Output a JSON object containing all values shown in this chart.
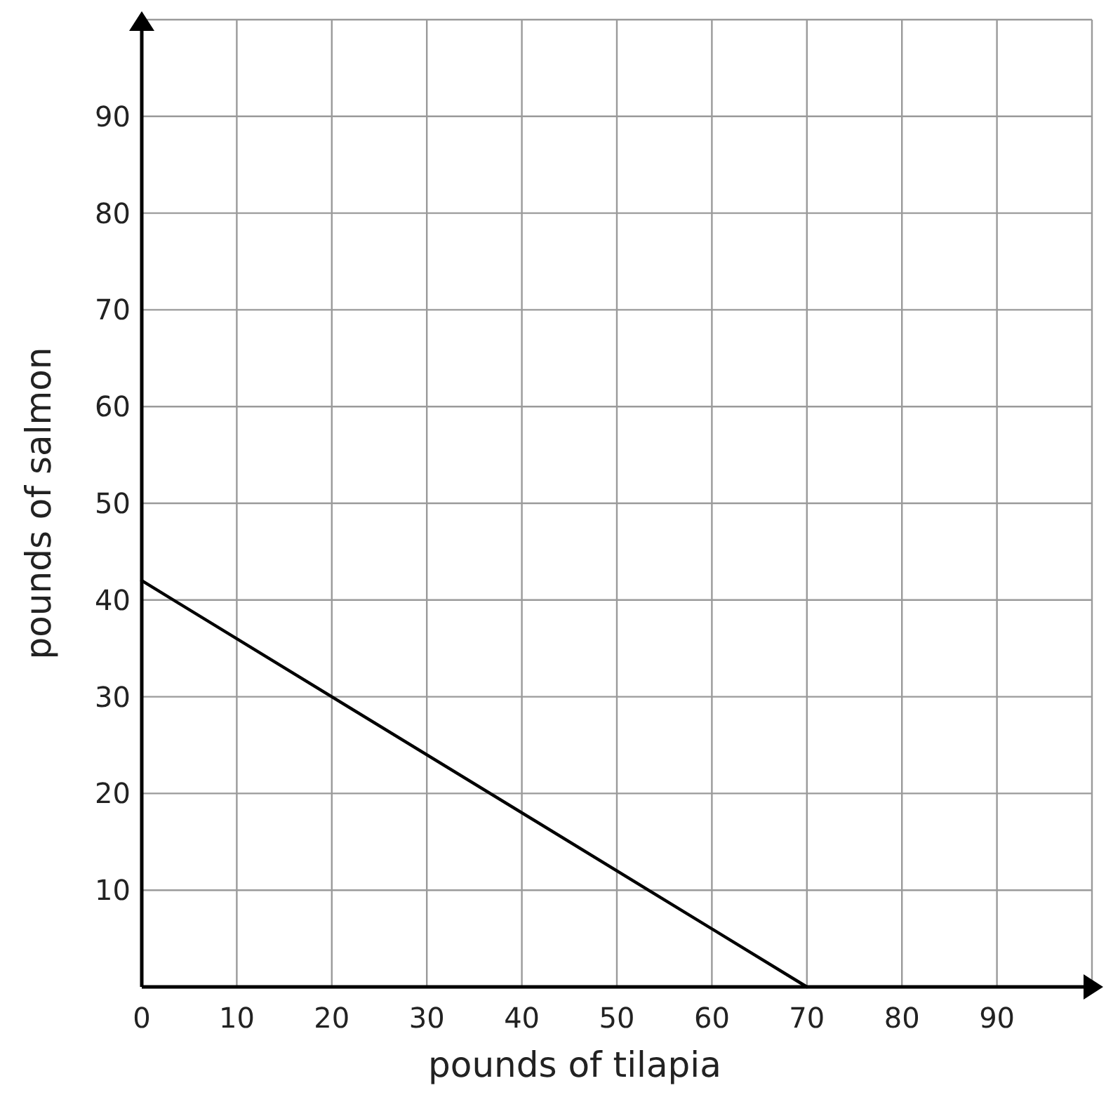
{
  "chart_data": {
    "type": "line",
    "xlabel": "pounds of tilapia",
    "ylabel": "pounds of salmon",
    "x": [
      0,
      70
    ],
    "series": [
      {
        "color": "#000000",
        "values": [
          42,
          0
        ]
      }
    ],
    "xlim": [
      0,
      100
    ],
    "ylim": [
      0,
      100
    ],
    "xticks": [
      {
        "value": 0,
        "label": "0"
      },
      10,
      20,
      30,
      40,
      50,
      60,
      70,
      80,
      90,
      {
        "value": 100,
        "label": null
      }
    ],
    "yticks": [
      10,
      20,
      30,
      40,
      50,
      60,
      70,
      80,
      90,
      {
        "value": 100,
        "label": null
      }
    ],
    "grid": true,
    "marker": "none",
    "line_style": "solid"
  }
}
